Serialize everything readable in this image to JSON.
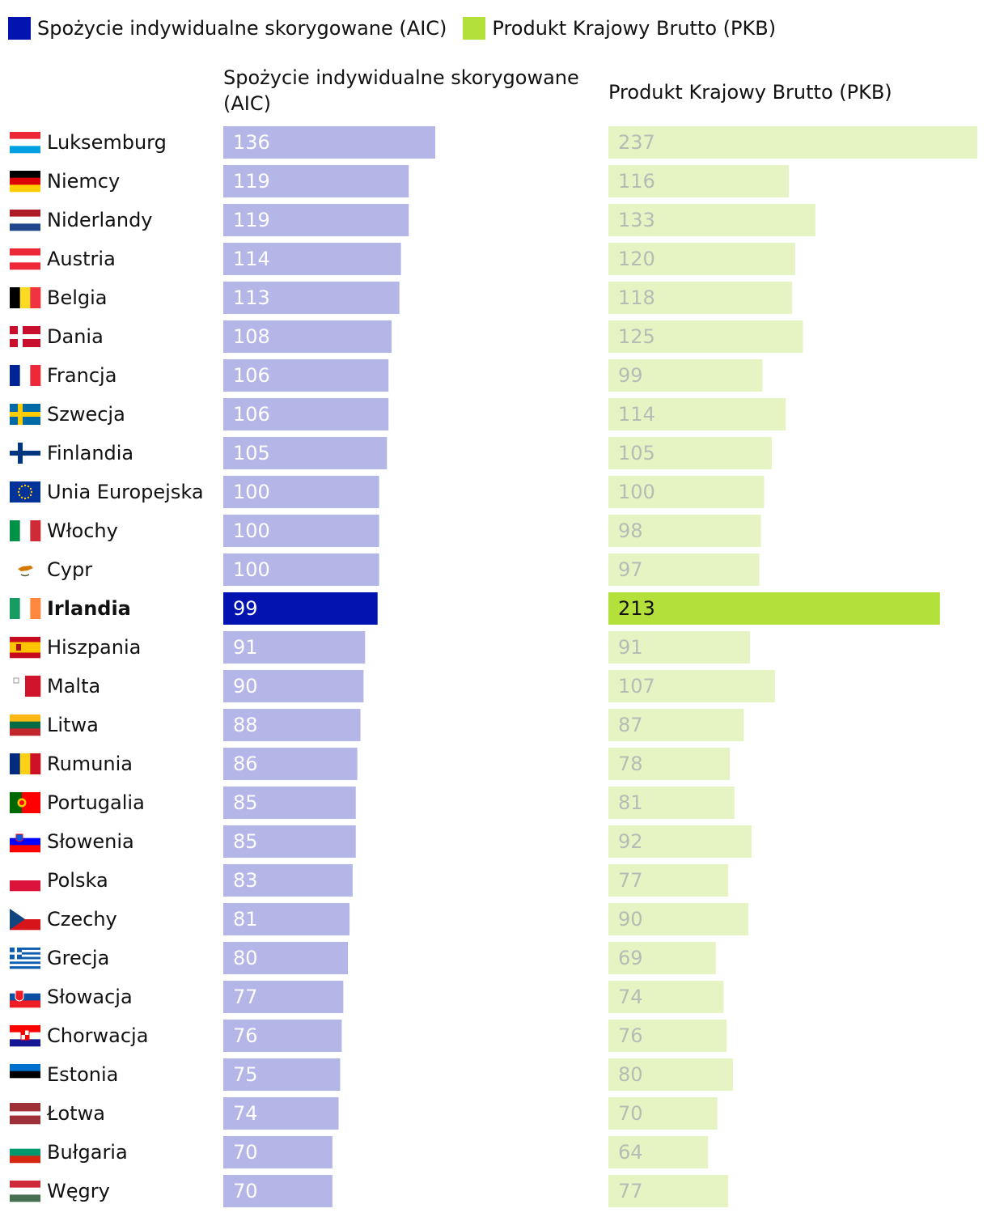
{
  "legend": [
    {
      "label": "Spożycie indywidualne skorygowane (AIC)",
      "color": "#0313b0"
    },
    {
      "label": "Produkt Krajowy Brutto (PKB)",
      "color": "#b4e03b"
    }
  ],
  "column_headers": {
    "aic_line1": "Spożycie indywidualne skorygowane",
    "aic_line2": "(AIC)",
    "gdp": "Produkt Krajowy Brutto (PKB)"
  },
  "colors": {
    "aic_highlight": "#0313b0",
    "aic_muted": "#b3b6e6",
    "gdp_highlight": "#b4e03b",
    "gdp_muted": "#e6f4c3",
    "value_light": "#ffffff",
    "value_muted_gdp": "#b6bbb6",
    "value_dark": "#111111"
  },
  "highlight_country": "Irlandia",
  "chart_data": {
    "type": "bar",
    "orientation": "horizontal",
    "categories": [
      "Luksemburg",
      "Niemcy",
      "Niderlandy",
      "Austria",
      "Belgia",
      "Dania",
      "Francja",
      "Szwecja",
      "Finlandia",
      "Unia Europejska",
      "Włochy",
      "Cypr",
      "Irlandia",
      "Hiszpania",
      "Malta",
      "Litwa",
      "Rumunia",
      "Portugalia",
      "Słowenia",
      "Polska",
      "Czechy",
      "Grecja",
      "Słowacja",
      "Chorwacja",
      "Estonia",
      "Łotwa",
      "Bułgaria",
      "Węgry"
    ],
    "flags": [
      "lu",
      "de",
      "nl",
      "at",
      "be",
      "dk",
      "fr",
      "se",
      "fi",
      "eu",
      "it",
      "cy",
      "ie",
      "es",
      "mt",
      "lt",
      "ro",
      "pt",
      "si",
      "pl",
      "cz",
      "gr",
      "sk",
      "hr",
      "ee",
      "lv",
      "bg",
      "hu"
    ],
    "series": [
      {
        "name": "Spożycie indywidualne skorygowane (AIC)",
        "values": [
          136,
          119,
          119,
          114,
          113,
          108,
          106,
          106,
          105,
          100,
          100,
          100,
          99,
          91,
          90,
          88,
          86,
          85,
          85,
          83,
          81,
          80,
          77,
          76,
          75,
          74,
          70,
          70
        ]
      },
      {
        "name": "Produkt Krajowy Brutto (PKB)",
        "values": [
          237,
          116,
          133,
          120,
          118,
          125,
          99,
          114,
          105,
          100,
          98,
          97,
          213,
          91,
          107,
          87,
          78,
          81,
          92,
          77,
          90,
          69,
          74,
          76,
          80,
          70,
          64,
          77
        ]
      }
    ]
  }
}
